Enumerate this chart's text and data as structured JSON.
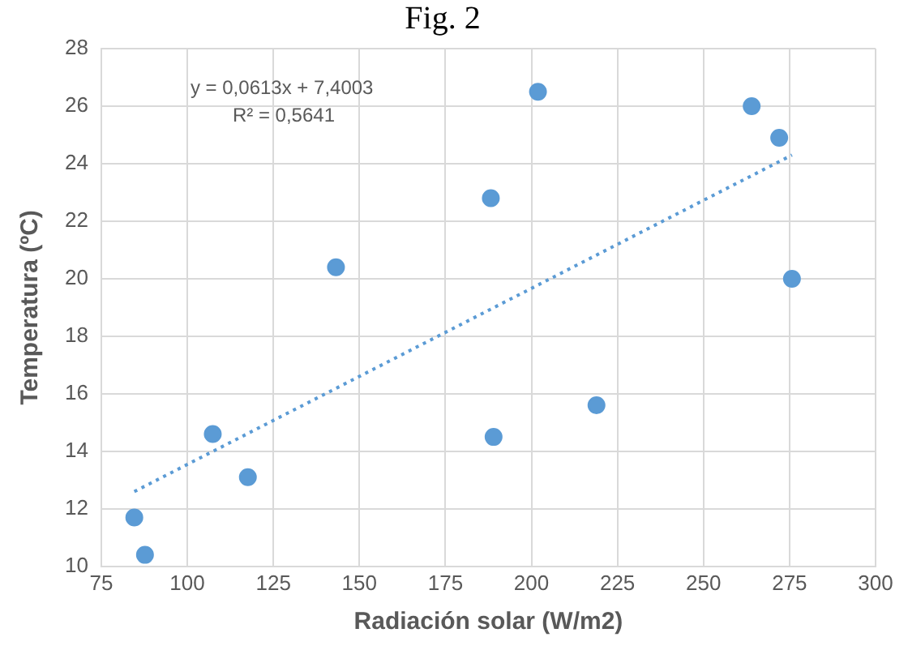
{
  "chart_data": {
    "type": "scatter",
    "title": "Fig. 2",
    "xlabel": "Radiación solar (W/m2)",
    "ylabel": "Temperatura (ºC)",
    "annotations": [
      "y = 0,0613x + 7,4003",
      "R² = 0,5641"
    ],
    "series": [
      {
        "color": "#5b9bd5",
        "x": [
          84.6,
          87.7,
          107.4,
          117.6,
          143.2,
          188.2,
          189.0,
          201.9,
          218.9,
          264.0,
          272.0,
          275.7
        ],
        "values": [
          11.7,
          10.4,
          14.6,
          13.1,
          20.4,
          22.8,
          14.5,
          26.5,
          15.6,
          26.0,
          24.9,
          20.0
        ],
        "marker": "circle"
      },
      {
        "type": "line",
        "color": "#5b9bd5",
        "x": [
          84.6,
          275.7
        ],
        "values": [
          12.6,
          24.3
        ],
        "line_style": "dotted",
        "marker": "none"
      }
    ],
    "xlim": [
      75,
      300
    ],
    "xticks": [
      75,
      100,
      125,
      150,
      175,
      200,
      225,
      250,
      275,
      300
    ],
    "ylim": [
      10,
      28
    ],
    "yticks": [
      10,
      12,
      14,
      16,
      18,
      20,
      22,
      24,
      26,
      28
    ],
    "grid": true,
    "legend": false
  }
}
